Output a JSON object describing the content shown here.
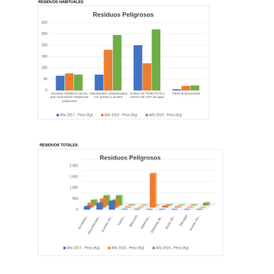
{
  "headings": [
    "RESIDUOS HABITUALES",
    "RESIDUOS TOTALES"
  ],
  "chart_data": [
    {
      "type": "bar",
      "title": "Residuos Peligrosos",
      "categories": [
        "Envases metálicos vacíos que contuvieron sustancias peligrosas",
        "Absorbentes contaminados con grasas y aceites",
        "Aceites sin PCBs PCTs y menos del 10% de agua",
        "Tubos fluorescentes"
      ],
      "series": [
        {
          "name": "Año 2017 - Peso (Kg)",
          "color": "#4472c4",
          "values": [
            65,
            70,
            200,
            5
          ]
        },
        {
          "name": "Año 2018 - Peso (Kg)",
          "color": "#ed7d31",
          "values": [
            75,
            180,
            120,
            20
          ]
        },
        {
          "name": "Año 2019 - Peso (Kg)",
          "color": "#70ad47",
          "values": [
            70,
            245,
            270,
            22
          ]
        }
      ],
      "ylim": [
        0,
        300
      ],
      "yticks": [
        0,
        50,
        100,
        150,
        200,
        250,
        300
      ],
      "grid": true
    },
    {
      "type": "bar3d",
      "title": "Residuos Peligrosos",
      "categories": [
        "Envases...",
        "Absorbentes...",
        "Aceites sin...",
        "Tubos...",
        "Mercurio",
        "Baterías...",
        "Baterías de...",
        "Ácido de...",
        "Silicagel",
        "Aceite sin..."
      ],
      "series": [
        {
          "name": "Año 2017 - Peso (Kg)",
          "color": "#4472c4",
          "values": [
            150,
            300,
            400,
            5,
            2,
            0,
            0,
            0,
            0,
            0
          ]
        },
        {
          "name": "Año 2018 - Peso (Kg)",
          "color": "#ed7d31",
          "values": [
            200,
            400,
            350,
            20,
            2,
            1550,
            80,
            30,
            10,
            0
          ]
        },
        {
          "name": "Año 2019 - Peso (Kg)",
          "color": "#70ad47",
          "values": [
            250,
            450,
            450,
            22,
            2,
            0,
            30,
            10,
            20,
            120
          ]
        }
      ],
      "ylim": [
        0,
        2000
      ],
      "yticks": [
        0,
        500,
        {
          "value": 1000,
          "label": "1,000"
        },
        {
          "value": 1500,
          "label": "1,500"
        },
        {
          "value": 2000,
          "label": "2,000"
        }
      ],
      "grid": true
    }
  ]
}
